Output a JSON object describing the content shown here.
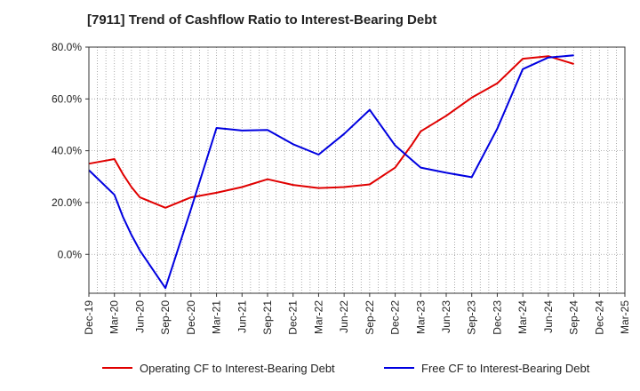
{
  "chart_data": {
    "type": "line",
    "title": "[7911]  Trend of Cashflow Ratio to Interest-Bearing Debt",
    "xlabel": "",
    "ylabel": "",
    "x_ticks": [
      "Dec-19",
      "Mar-20",
      "Jun-20",
      "Sep-20",
      "Dec-20",
      "Mar-21",
      "Jun-21",
      "Sep-21",
      "Dec-21",
      "Mar-22",
      "Jun-22",
      "Sep-22",
      "Dec-22",
      "Mar-23",
      "Jun-23",
      "Sep-23",
      "Dec-23",
      "Mar-24",
      "Jun-24",
      "Sep-24",
      "Dec-24",
      "Mar-25"
    ],
    "y_ticks": [
      "0.0%",
      "20.0%",
      "40.0%",
      "60.0%",
      "80.0%"
    ],
    "ylim": [
      -15,
      80
    ],
    "grid": true,
    "legend_position": "bottom",
    "series": [
      {
        "name": "Operating CF to Interest-Bearing Debt",
        "color": "#e00000",
        "x": [
          "Dec-19",
          "Mar-20",
          "Apr-20",
          "May-20",
          "Jun-20",
          "Sep-20",
          "Dec-20",
          "Mar-21",
          "Jun-21",
          "Sep-21",
          "Dec-21",
          "Mar-22",
          "Jun-22",
          "Sep-22",
          "Dec-22",
          "Jan-23",
          "Feb-23",
          "Mar-23",
          "Jun-23",
          "Sep-23",
          "Dec-23",
          "Mar-24",
          "Jun-24",
          "Sep-24"
        ],
        "values": [
          35.0,
          36.8,
          31.0,
          26.0,
          22.0,
          18.0,
          22.0,
          23.8,
          26.0,
          29.0,
          26.8,
          25.6,
          26.0,
          27.0,
          33.5,
          38.0,
          42.5,
          47.5,
          53.5,
          60.5,
          66.0,
          75.5,
          76.5,
          73.5
        ]
      },
      {
        "name": "Free CF to Interest-Bearing Debt",
        "color": "#0000e0",
        "x": [
          "Dec-19",
          "Mar-20",
          "Apr-20",
          "May-20",
          "Jun-20",
          "Sep-20",
          "Dec-20",
          "Mar-21",
          "Jun-21",
          "Sep-21",
          "Dec-21",
          "Mar-22",
          "Jun-22",
          "Sep-22",
          "Dec-22",
          "Mar-23",
          "Jun-23",
          "Sep-23",
          "Dec-23",
          "Mar-24",
          "Jun-24",
          "Sep-24"
        ],
        "values": [
          32.5,
          23.0,
          14.5,
          7.5,
          1.5,
          -13.0,
          17.5,
          48.8,
          47.8,
          48.0,
          42.5,
          38.5,
          46.5,
          55.8,
          42.0,
          33.5,
          31.5,
          29.8,
          48.5,
          71.5,
          76.0,
          76.8
        ]
      }
    ]
  }
}
